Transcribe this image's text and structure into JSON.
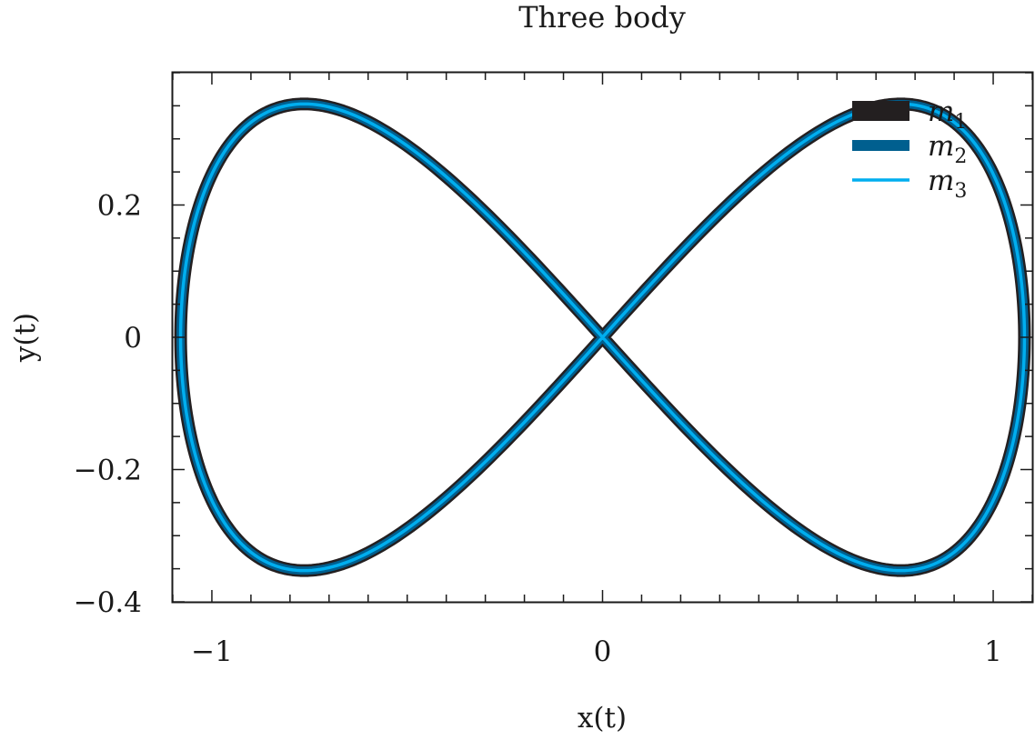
{
  "chart_data": {
    "type": "line",
    "title": "Three body",
    "xlabel": "x(t)",
    "ylabel": "y(t)",
    "xlim": [
      -1.1,
      1.1
    ],
    "ylim": [
      -0.4,
      0.4
    ],
    "xticks": [
      -1,
      0,
      1
    ],
    "xtick_labels": [
      "−1",
      "0",
      "1"
    ],
    "yticks": [
      -0.4,
      -0.2,
      0,
      0.2
    ],
    "ytick_labels": [
      "−0.4",
      "−0.2",
      "0",
      "0.2"
    ],
    "grid": false,
    "legend_position": "top-right",
    "series": [
      {
        "name": "m1",
        "label_base": "m",
        "label_sub": "1",
        "color": "#231f20",
        "curve": "figure-eight",
        "x_amplitude": 1.08,
        "y_amplitude": 0.36
      },
      {
        "name": "m2",
        "label_base": "m",
        "label_sub": "2",
        "color": "#005f8f",
        "curve": "figure-eight",
        "x_amplitude": 1.08,
        "y_amplitude": 0.36
      },
      {
        "name": "m3",
        "label_base": "m",
        "label_sub": "3",
        "color": "#00aeef",
        "curve": "figure-eight",
        "x_amplitude": 1.08,
        "y_amplitude": 0.36
      }
    ]
  }
}
